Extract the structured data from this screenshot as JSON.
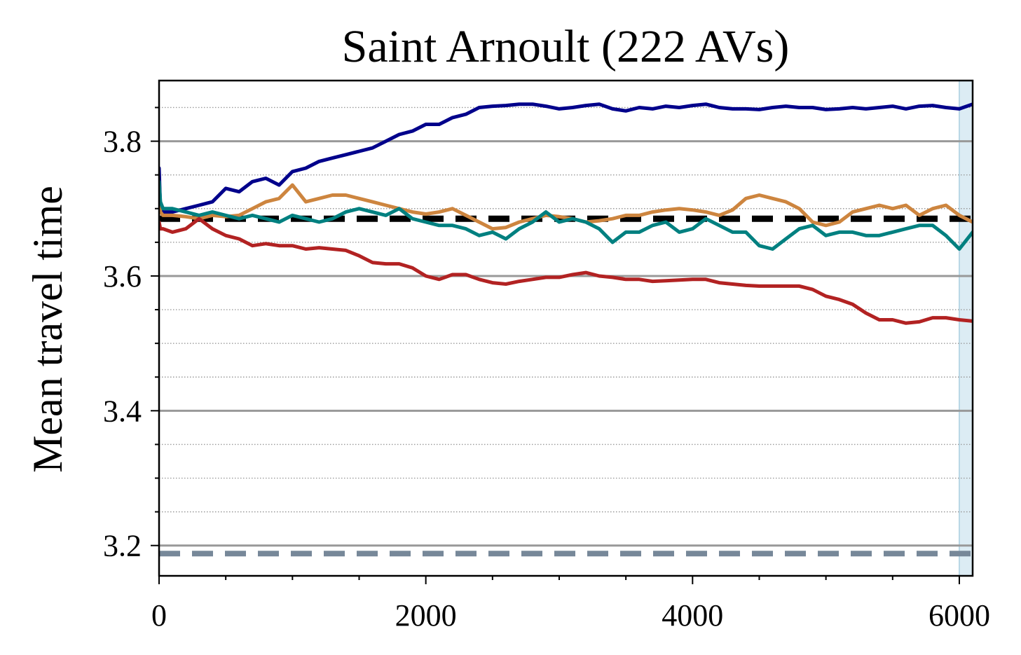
{
  "chart_data": {
    "type": "line",
    "title": "Saint Arnoult (222 AVs)",
    "xlabel": "",
    "ylabel": "Mean travel time",
    "xlim": [
      0,
      6100
    ],
    "ylim": [
      3.155,
      3.89
    ],
    "xticks": [
      0,
      2000,
      4000,
      6000
    ],
    "xtick_labels": [
      "0",
      "2000",
      "4000",
      "6000"
    ],
    "yticks": [
      3.2,
      3.4,
      3.6,
      3.8
    ],
    "ytick_labels": [
      "3.2",
      "3.4",
      "3.6",
      "3.8"
    ],
    "grid": {
      "major_y": true,
      "minor_y_dotted": true
    },
    "shaded_x_range": {
      "start": 6000,
      "end": 6100,
      "color": "#dcecf4"
    },
    "reference_lines": [
      {
        "y": 3.685,
        "color": "#000000",
        "style": "dashed"
      },
      {
        "y": 3.188,
        "color": "#778899",
        "style": "dashed"
      }
    ],
    "series": [
      {
        "color": "#00008b",
        "x": [
          0,
          10,
          30,
          100,
          200,
          300,
          400,
          500,
          600,
          700,
          800,
          900,
          1000,
          1100,
          1200,
          1300,
          1400,
          1500,
          1600,
          1700,
          1800,
          1900,
          2000,
          2100,
          2200,
          2300,
          2400,
          2500,
          2600,
          2700,
          2800,
          2900,
          3000,
          3100,
          3200,
          3300,
          3400,
          3500,
          3600,
          3700,
          3800,
          3900,
          4000,
          4100,
          4200,
          4300,
          4400,
          4500,
          4600,
          4700,
          4800,
          4900,
          5000,
          5100,
          5200,
          5300,
          5400,
          5500,
          5600,
          5700,
          5800,
          5900,
          6000,
          6100
        ],
        "y": [
          3.76,
          3.7,
          3.695,
          3.695,
          3.7,
          3.705,
          3.71,
          3.73,
          3.725,
          3.74,
          3.745,
          3.735,
          3.755,
          3.76,
          3.77,
          3.775,
          3.78,
          3.785,
          3.79,
          3.8,
          3.81,
          3.815,
          3.825,
          3.825,
          3.835,
          3.84,
          3.85,
          3.852,
          3.853,
          3.855,
          3.855,
          3.852,
          3.848,
          3.85,
          3.853,
          3.855,
          3.848,
          3.845,
          3.85,
          3.848,
          3.852,
          3.85,
          3.853,
          3.855,
          3.85,
          3.848,
          3.848,
          3.847,
          3.85,
          3.852,
          3.85,
          3.85,
          3.847,
          3.848,
          3.85,
          3.848,
          3.85,
          3.852,
          3.848,
          3.852,
          3.853,
          3.85,
          3.848,
          3.855
        ]
      },
      {
        "color": "#cd853f",
        "x": [
          0,
          10,
          30,
          100,
          200,
          300,
          400,
          500,
          600,
          700,
          800,
          900,
          1000,
          1100,
          1200,
          1300,
          1400,
          1500,
          1600,
          1700,
          1800,
          1900,
          2000,
          2100,
          2200,
          2300,
          2400,
          2500,
          2600,
          2700,
          2800,
          2900,
          3000,
          3100,
          3200,
          3300,
          3400,
          3500,
          3600,
          3700,
          3800,
          3900,
          4000,
          4100,
          4200,
          4300,
          4400,
          4500,
          4600,
          4700,
          4800,
          4900,
          5000,
          5100,
          5200,
          5300,
          5400,
          5500,
          5600,
          5700,
          5800,
          5900,
          6000,
          6100
        ],
        "y": [
          3.72,
          3.695,
          3.69,
          3.69,
          3.688,
          3.685,
          3.69,
          3.688,
          3.69,
          3.7,
          3.71,
          3.715,
          3.735,
          3.71,
          3.715,
          3.72,
          3.72,
          3.715,
          3.71,
          3.705,
          3.7,
          3.695,
          3.692,
          3.695,
          3.7,
          3.69,
          3.68,
          3.67,
          3.672,
          3.68,
          3.685,
          3.69,
          3.688,
          3.685,
          3.68,
          3.682,
          3.685,
          3.69,
          3.69,
          3.695,
          3.698,
          3.7,
          3.698,
          3.695,
          3.69,
          3.698,
          3.715,
          3.72,
          3.715,
          3.71,
          3.7,
          3.68,
          3.675,
          3.68,
          3.695,
          3.7,
          3.705,
          3.7,
          3.705,
          3.69,
          3.7,
          3.705,
          3.69,
          3.68
        ]
      },
      {
        "color": "#008080",
        "x": [
          0,
          10,
          30,
          100,
          200,
          300,
          400,
          500,
          600,
          700,
          800,
          900,
          1000,
          1100,
          1200,
          1300,
          1400,
          1500,
          1600,
          1700,
          1800,
          1900,
          2000,
          2100,
          2200,
          2300,
          2400,
          2500,
          2600,
          2700,
          2800,
          2900,
          3000,
          3100,
          3200,
          3300,
          3400,
          3500,
          3600,
          3700,
          3800,
          3900,
          4000,
          4100,
          4200,
          4300,
          4400,
          4500,
          4600,
          4700,
          4800,
          4900,
          5000,
          5100,
          5200,
          5300,
          5400,
          5500,
          5600,
          5700,
          5800,
          5900,
          6000,
          6100
        ],
        "y": [
          3.74,
          3.71,
          3.7,
          3.7,
          3.695,
          3.69,
          3.695,
          3.69,
          3.685,
          3.69,
          3.685,
          3.68,
          3.69,
          3.685,
          3.68,
          3.685,
          3.695,
          3.7,
          3.695,
          3.69,
          3.7,
          3.685,
          3.68,
          3.675,
          3.675,
          3.67,
          3.66,
          3.665,
          3.655,
          3.67,
          3.68,
          3.695,
          3.68,
          3.685,
          3.68,
          3.67,
          3.65,
          3.665,
          3.665,
          3.675,
          3.68,
          3.665,
          3.67,
          3.685,
          3.675,
          3.665,
          3.665,
          3.645,
          3.64,
          3.655,
          3.67,
          3.675,
          3.66,
          3.665,
          3.665,
          3.66,
          3.66,
          3.665,
          3.67,
          3.675,
          3.675,
          3.66,
          3.64,
          3.665
        ]
      },
      {
        "color": "#b22222",
        "x": [
          0,
          10,
          30,
          100,
          200,
          300,
          400,
          500,
          600,
          700,
          800,
          900,
          1000,
          1100,
          1200,
          1300,
          1400,
          1500,
          1600,
          1700,
          1800,
          1900,
          2000,
          2100,
          2200,
          2300,
          2400,
          2500,
          2600,
          2700,
          2800,
          2900,
          3000,
          3100,
          3200,
          3300,
          3400,
          3500,
          3600,
          3700,
          3800,
          3900,
          4000,
          4100,
          4200,
          4300,
          4400,
          4500,
          4600,
          4700,
          4800,
          4900,
          5000,
          5100,
          5200,
          5300,
          5400,
          5500,
          5600,
          5700,
          5800,
          5900,
          6000,
          6100
        ],
        "y": [
          3.68,
          3.67,
          3.67,
          3.665,
          3.67,
          3.685,
          3.67,
          3.66,
          3.655,
          3.645,
          3.648,
          3.645,
          3.645,
          3.64,
          3.642,
          3.64,
          3.638,
          3.63,
          3.62,
          3.618,
          3.618,
          3.612,
          3.6,
          3.595,
          3.602,
          3.602,
          3.595,
          3.59,
          3.588,
          3.592,
          3.595,
          3.598,
          3.598,
          3.602,
          3.605,
          3.6,
          3.598,
          3.595,
          3.595,
          3.592,
          3.593,
          3.594,
          3.595,
          3.595,
          3.59,
          3.588,
          3.586,
          3.585,
          3.585,
          3.585,
          3.585,
          3.58,
          3.57,
          3.565,
          3.558,
          3.545,
          3.535,
          3.535,
          3.53,
          3.532,
          3.538,
          3.538,
          3.535,
          3.533
        ]
      }
    ]
  },
  "colors": {
    "axis": "#000000",
    "major_grid": "#999999",
    "minor_grid": "#9a9a9a",
    "shade_edge": "#b9d7e6"
  }
}
